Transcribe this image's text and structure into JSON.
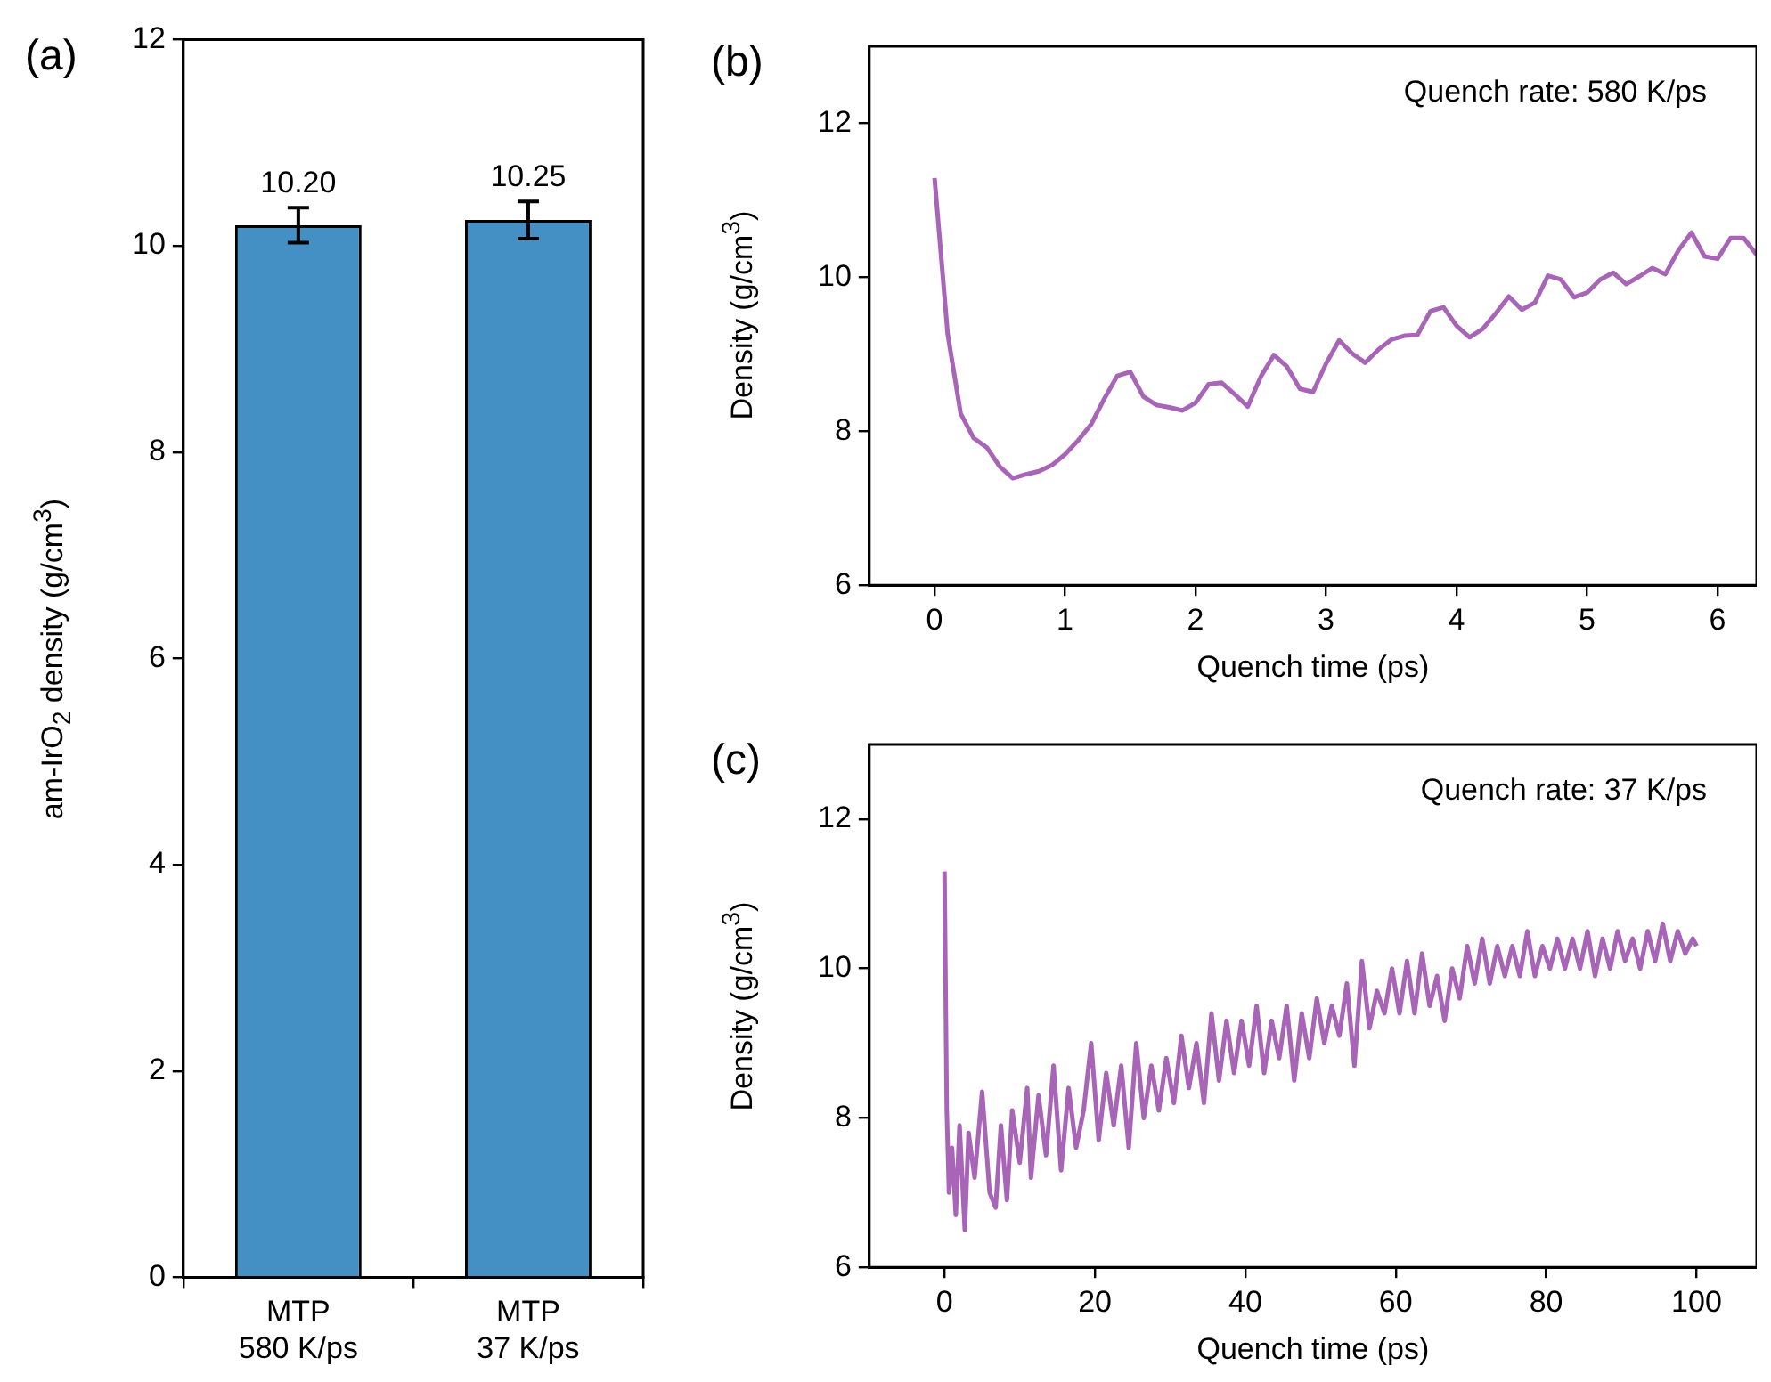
{
  "chart_data": [
    {
      "type": "bar",
      "categories": [
        "MTP\n580 K/ps",
        "MTP\n37 K/ps"
      ],
      "values": [
        10.2,
        10.25
      ],
      "errors": [
        0.17,
        0.18
      ],
      "value_labels": [
        "10.20",
        "10.25"
      ],
      "color": "#4490c4",
      "ylim": [
        0,
        12
      ],
      "yticks": [
        0,
        2,
        4,
        6,
        8,
        10,
        12
      ],
      "ylabel": "am-IrO$_{2}$ density (g/cm$^{3}$)",
      "annotations": [
        "(a)"
      ]
    },
    {
      "type": "line",
      "color": "#a865b8",
      "xlim": [
        -0.5,
        6.3
      ],
      "xticks": [
        0,
        1,
        2,
        3,
        4,
        5,
        6
      ],
      "ylim": [
        6,
        13
      ],
      "yticks": [
        6,
        8,
        10,
        12
      ],
      "xlabel": "Quench time (ps)",
      "ylabel": "Density (g/cm$^{3}$)",
      "annotations": [
        "(b)",
        "Quench rate: 580 K/ps"
      ],
      "x": [
        0,
        0.1,
        0.2,
        0.3,
        0.4,
        0.5,
        0.6,
        0.7,
        0.8,
        0.9,
        1.0,
        1.1,
        1.2,
        1.3,
        1.4,
        1.5,
        1.6,
        1.7,
        1.8,
        1.9,
        2.0,
        2.1,
        2.2,
        2.3,
        2.4,
        2.5,
        2.6,
        2.7,
        2.8,
        2.9,
        3.0,
        3.1,
        3.2,
        3.3,
        3.4,
        3.5,
        3.6,
        3.7,
        3.8,
        3.9,
        4.0,
        4.1,
        4.2,
        4.3,
        4.4,
        4.5,
        4.6,
        4.7,
        4.8,
        4.9,
        5.0,
        5.1,
        5.2,
        5.3,
        5.4,
        5.5,
        5.6,
        5.7,
        5.8,
        5.9,
        6.0,
        6.1,
        6.2,
        6.3
      ],
      "values": [
        11.29,
        9.27,
        8.23,
        7.91,
        7.79,
        7.54,
        7.39,
        7.44,
        7.48,
        7.56,
        7.7,
        7.88,
        8.09,
        8.42,
        8.72,
        8.77,
        8.45,
        8.34,
        8.31,
        8.27,
        8.37,
        8.61,
        8.63,
        8.48,
        8.32,
        8.71,
        8.99,
        8.84,
        8.55,
        8.51,
        8.88,
        9.18,
        9.01,
        8.89,
        9.06,
        9.19,
        9.24,
        9.25,
        9.56,
        9.61,
        9.37,
        9.22,
        9.33,
        9.53,
        9.75,
        9.58,
        9.67,
        10.02,
        9.97,
        9.74,
        9.8,
        9.97,
        10.06,
        9.91,
        10.01,
        10.12,
        10.04,
        10.35,
        10.58,
        10.27,
        10.24,
        10.51,
        10.51,
        10.29
      ]
    },
    {
      "type": "line",
      "color": "#a865b8",
      "xlim": [
        -10,
        108
      ],
      "xticks": [
        0,
        20,
        40,
        60,
        80,
        100
      ],
      "ylim": [
        6,
        13
      ],
      "yticks": [
        6,
        8,
        10,
        12
      ],
      "xlabel": "Quench time (ps)",
      "ylabel": "Density (g/cm$^{3}$)",
      "annotations": [
        "(c)",
        "Quench rate: 37 K/ps"
      ],
      "x": [
        0,
        0.3,
        0.6,
        1,
        1.5,
        2,
        2.7,
        3.2,
        4,
        5,
        6,
        6.8,
        7.5,
        8.3,
        9,
        10,
        11,
        11.5,
        12.5,
        13.5,
        14.5,
        15.5,
        16.5,
        17.5,
        18.5,
        19.5,
        20.5,
        21.5,
        22.5,
        23.5,
        24.5,
        25.5,
        26.5,
        27.5,
        28.5,
        29.5,
        30.5,
        31.5,
        32.5,
        33.5,
        34.5,
        35.5,
        36.5,
        37.5,
        38.5,
        39.5,
        40.5,
        41.5,
        42.5,
        43.5,
        44.5,
        45.5,
        46.5,
        47.5,
        48.5,
        49.5,
        50.5,
        51.5,
        52.5,
        53.5,
        54.5,
        55.5,
        56.5,
        57.5,
        58.5,
        59.5,
        60.5,
        61.5,
        62.5,
        63.5,
        64.5,
        65.5,
        66.5,
        67.5,
        68.5,
        69.5,
        70.5,
        71.5,
        72.5,
        73.5,
        74.5,
        75.5,
        76.5,
        77.5,
        78.5,
        79.5,
        80.5,
        81.5,
        82.5,
        83.5,
        84.5,
        85.5,
        86.5,
        87.5,
        88.5,
        89.5,
        90.5,
        91.5,
        92.5,
        93.5,
        94.5,
        95.5,
        96.5,
        97.5,
        98.5,
        99.5,
        100
      ],
      "values": [
        11.3,
        8.1,
        7.0,
        7.6,
        6.7,
        7.9,
        6.5,
        7.8,
        7.2,
        8.35,
        7.0,
        6.8,
        7.9,
        6.9,
        8.1,
        7.4,
        8.4,
        7.2,
        8.3,
        7.5,
        8.7,
        7.3,
        8.4,
        7.6,
        8.1,
        9.0,
        7.7,
        8.6,
        7.9,
        8.7,
        7.6,
        9.0,
        8.0,
        8.7,
        8.1,
        8.8,
        8.2,
        9.1,
        8.4,
        9.0,
        8.2,
        9.4,
        8.5,
        9.3,
        8.6,
        9.3,
        8.7,
        9.5,
        8.6,
        9.3,
        8.8,
        9.5,
        8.5,
        9.4,
        8.8,
        9.6,
        9.0,
        9.5,
        9.1,
        9.8,
        8.7,
        10.1,
        9.2,
        9.7,
        9.4,
        10.0,
        9.4,
        10.1,
        9.4,
        10.2,
        9.5,
        9.9,
        9.3,
        10.0,
        9.6,
        10.3,
        9.8,
        10.4,
        9.8,
        10.3,
        9.9,
        10.3,
        9.9,
        10.5,
        9.9,
        10.3,
        10.0,
        10.4,
        10.0,
        10.4,
        10.0,
        10.5,
        9.9,
        10.4,
        10.0,
        10.5,
        10.1,
        10.4,
        10.0,
        10.5,
        10.1,
        10.6,
        10.1,
        10.5,
        10.2,
        10.4,
        10.3
      ]
    }
  ]
}
